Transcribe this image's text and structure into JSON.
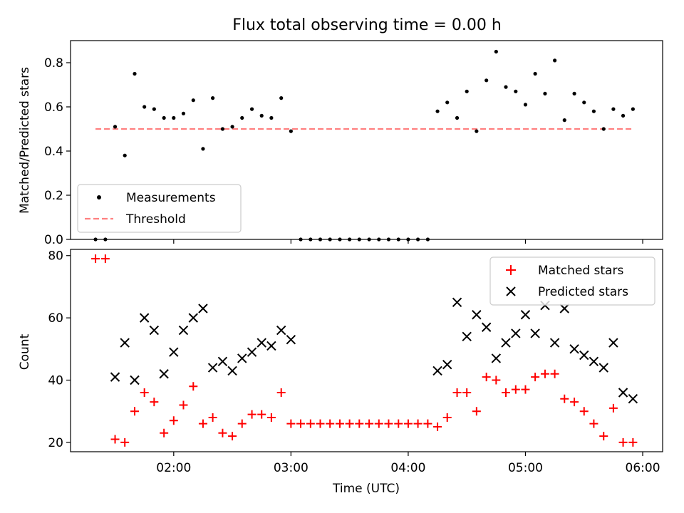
{
  "chart_data": [
    {
      "type": "scatter",
      "title": "Flux total observing time = 0.00 h",
      "xlabel": "",
      "ylabel": "Matched/Predicted stars",
      "xlim_hours": [
        1.12,
        6.17
      ],
      "ylim": [
        0,
        0.9
      ],
      "yticks": [
        0.0,
        0.2,
        0.4,
        0.6,
        0.8
      ],
      "ytick_labels": [
        "0.0",
        "0.2",
        "0.4",
        "0.6",
        "0.8"
      ],
      "legend_position": "lower-left",
      "legend": [
        "Measurements",
        "Threshold"
      ],
      "series": [
        {
          "name": "Measurements",
          "marker": "dot",
          "color": "#000000",
          "x_hours": [
            1.333,
            1.417,
            1.5,
            1.583,
            1.667,
            1.75,
            1.833,
            1.917,
            2.0,
            2.083,
            2.167,
            2.25,
            2.333,
            2.417,
            2.5,
            2.583,
            2.667,
            2.75,
            2.833,
            2.917,
            3.0,
            3.083,
            3.167,
            3.25,
            3.333,
            3.417,
            3.5,
            3.583,
            3.667,
            3.75,
            3.833,
            3.917,
            4.0,
            4.083,
            4.167,
            4.25,
            4.333,
            4.417,
            4.5,
            4.583,
            4.667,
            4.75,
            4.833,
            4.917,
            5.0,
            5.083,
            5.167,
            5.25,
            5.333,
            5.417,
            5.5,
            5.583,
            5.667,
            5.75,
            5.833,
            5.917
          ],
          "y": [
            0.0,
            0.0,
            0.51,
            0.38,
            0.75,
            0.6,
            0.59,
            0.55,
            0.55,
            0.57,
            0.63,
            0.41,
            0.64,
            0.5,
            0.51,
            0.55,
            0.59,
            0.56,
            0.55,
            0.64,
            0.49,
            0.0,
            0.0,
            0.0,
            0.0,
            0.0,
            0.0,
            0.0,
            0.0,
            0.0,
            0.0,
            0.0,
            0.0,
            0.0,
            0.0,
            0.58,
            0.62,
            0.55,
            0.67,
            0.49,
            0.72,
            0.85,
            0.69,
            0.67,
            0.61,
            0.75,
            0.66,
            0.81,
            0.54,
            0.66,
            0.62,
            0.58,
            0.5,
            0.59,
            0.56,
            0.59
          ]
        },
        {
          "name": "Threshold",
          "style": "dashed",
          "color": "#ff8080",
          "x_hours": [
            1.333,
            5.917
          ],
          "y": [
            0.5,
            0.5
          ]
        }
      ]
    },
    {
      "type": "scatter",
      "xlabel": "Time (UTC)",
      "ylabel": "Count",
      "xlim_hours": [
        1.12,
        6.17
      ],
      "ylim": [
        17,
        82
      ],
      "yticks": [
        20,
        40,
        60,
        80
      ],
      "ytick_labels": [
        "20",
        "40",
        "60",
        "80"
      ],
      "xticks_hours": [
        2,
        3,
        4,
        5,
        6
      ],
      "xtick_labels": [
        "02:00",
        "03:00",
        "04:00",
        "05:00",
        "06:00"
      ],
      "legend_position": "top-right",
      "legend": [
        "Matched stars",
        "Predicted stars"
      ],
      "series": [
        {
          "name": "Matched stars",
          "marker": "plus",
          "color": "#ff0000",
          "x_hours": [
            1.333,
            1.417,
            1.5,
            1.583,
            1.667,
            1.75,
            1.833,
            1.917,
            2.0,
            2.083,
            2.167,
            2.25,
            2.333,
            2.417,
            2.5,
            2.583,
            2.667,
            2.75,
            2.833,
            2.917,
            3.0,
            3.083,
            3.167,
            3.25,
            3.333,
            3.417,
            3.5,
            3.583,
            3.667,
            3.75,
            3.833,
            3.917,
            4.0,
            4.083,
            4.167,
            4.25,
            4.333,
            4.417,
            4.5,
            4.583,
            4.667,
            4.75,
            4.833,
            4.917,
            5.0,
            5.083,
            5.167,
            5.25,
            5.333,
            5.417,
            5.5,
            5.583,
            5.667,
            5.75,
            5.833,
            5.917
          ],
          "y": [
            79,
            79,
            21,
            20,
            30,
            36,
            33,
            23,
            27,
            32,
            38,
            26,
            28,
            23,
            22,
            26,
            29,
            29,
            28,
            36,
            26,
            26,
            26,
            26,
            26,
            26,
            26,
            26,
            26,
            26,
            26,
            26,
            26,
            26,
            26,
            25,
            28,
            36,
            36,
            30,
            41,
            40,
            36,
            37,
            37,
            41,
            42,
            42,
            34,
            33,
            30,
            26,
            22,
            31,
            20,
            20
          ]
        },
        {
          "name": "Predicted stars",
          "marker": "x",
          "color": "#000000",
          "x_hours": [
            1.5,
            1.583,
            1.667,
            1.75,
            1.833,
            1.917,
            2.0,
            2.083,
            2.167,
            2.25,
            2.333,
            2.417,
            2.5,
            2.583,
            2.667,
            2.75,
            2.833,
            2.917,
            3.0,
            4.25,
            4.333,
            4.417,
            4.5,
            4.583,
            4.667,
            4.75,
            4.833,
            4.917,
            5.0,
            5.083,
            5.167,
            5.25,
            5.333,
            5.417,
            5.5,
            5.583,
            5.667,
            5.75,
            5.833,
            5.917
          ],
          "y": [
            41,
            52,
            40,
            60,
            56,
            42,
            49,
            56,
            60,
            63,
            44,
            46,
            43,
            47,
            49,
            52,
            51,
            56,
            53,
            43,
            45,
            65,
            54,
            61,
            57,
            47,
            52,
            55,
            61,
            55,
            64,
            52,
            63,
            50,
            48,
            46,
            44,
            52,
            36,
            34
          ]
        }
      ]
    }
  ]
}
